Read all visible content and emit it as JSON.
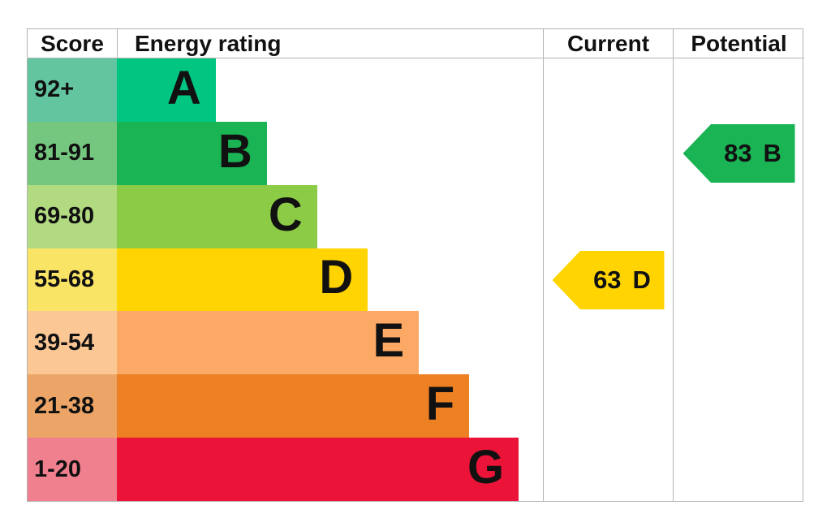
{
  "header": {
    "score": "Score",
    "energy_rating": "Energy rating",
    "current": "Current",
    "potential": "Potential"
  },
  "chart_data": {
    "type": "bar",
    "orientation": "horizontal",
    "title": "",
    "categories": [
      "A",
      "B",
      "C",
      "D",
      "E",
      "F",
      "G"
    ],
    "score_ranges": [
      "92+",
      "81-91",
      "69-80",
      "55-68",
      "39-54",
      "21-38",
      "1-20"
    ],
    "bar_lengths_pct": [
      23.2,
      35.2,
      47.0,
      58.9,
      70.9,
      82.7,
      94.3
    ],
    "bar_colors": [
      "#00c681",
      "#1ab455",
      "#8ccb46",
      "#ffd400",
      "#fca966",
      "#ee8024",
      "#eb1438"
    ],
    "score_cell_colors": [
      "#62c5a0",
      "#75c780",
      "#b2da81",
      "#fae465",
      "#fbc795",
      "#eca566",
      "#f1808e"
    ],
    "legend_position": "none",
    "grid": false,
    "markers": [
      {
        "column": "current",
        "value": "63",
        "band": "D",
        "color": "#ffd400"
      },
      {
        "column": "potential",
        "value": "83",
        "band": "B",
        "color": "#1ab455"
      }
    ]
  }
}
